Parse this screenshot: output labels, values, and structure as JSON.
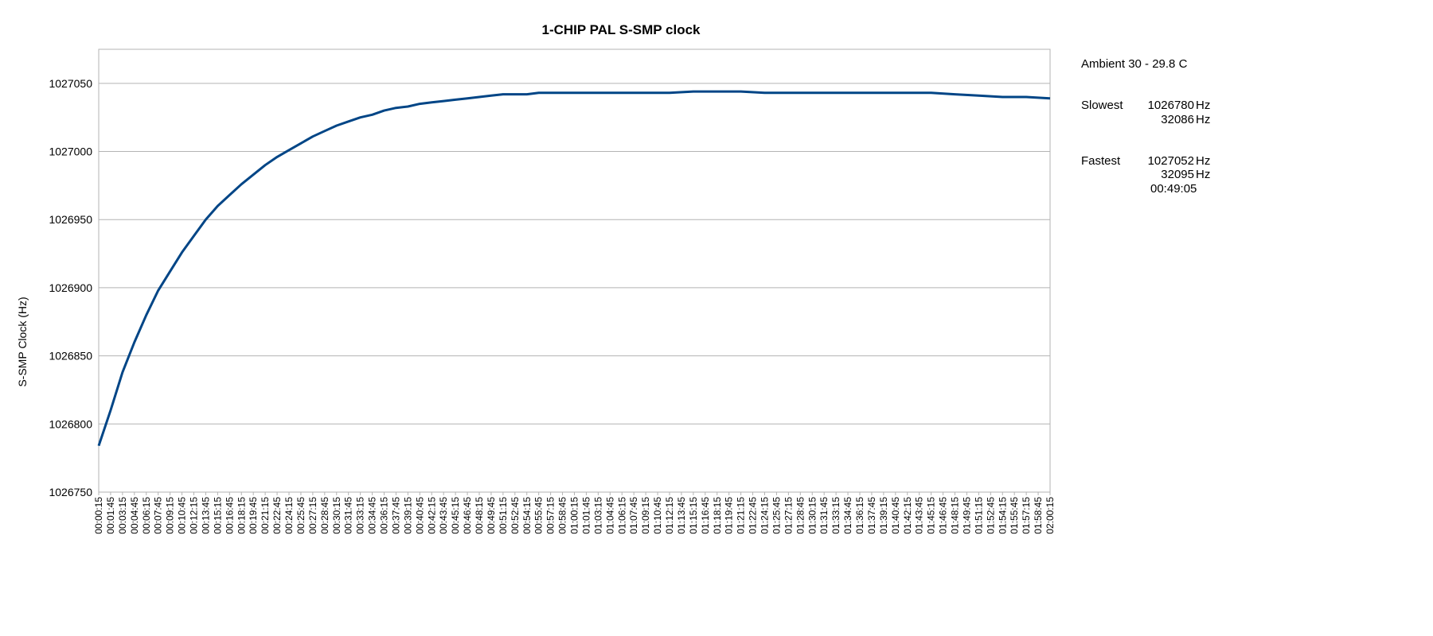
{
  "chart_data": {
    "type": "line",
    "title": "1-CHIP PAL S-SMP clock",
    "xlabel": "",
    "ylabel": "S-SMP Clock (Hz)",
    "ylim": [
      1026750,
      1027075
    ],
    "yticks": [
      1026750,
      1026800,
      1026850,
      1026900,
      1026950,
      1027000,
      1027050
    ],
    "grid": true,
    "legend": "none",
    "line_color": "#004586",
    "x_start": "00:00:15",
    "x_end": "02:00:15",
    "x_tick_labels": [
      "00:00:15",
      "00:01:45",
      "00:03:15",
      "00:04:45",
      "00:06:15",
      "00:07:45",
      "00:09:15",
      "00:10:45",
      "00:12:15",
      "00:13:45",
      "00:15:15",
      "00:16:45",
      "00:18:15",
      "00:19:45",
      "00:21:15",
      "00:22:45",
      "00:24:15",
      "00:25:45",
      "00:27:15",
      "00:28:45",
      "00:30:15",
      "00:31:45",
      "00:33:15",
      "00:34:45",
      "00:36:15",
      "00:37:45",
      "00:39:15",
      "00:40:45",
      "00:42:15",
      "00:43:45",
      "00:45:15",
      "00:46:45",
      "00:48:15",
      "00:49:45",
      "00:51:15",
      "00:52:45",
      "00:54:15",
      "00:55:45",
      "00:57:15",
      "00:58:45",
      "01:00:15",
      "01:01:45",
      "01:03:15",
      "01:04:45",
      "01:06:15",
      "01:07:45",
      "01:09:15",
      "01:10:45",
      "01:12:15",
      "01:13:45",
      "01:15:15",
      "01:16:45",
      "01:18:15",
      "01:19:45",
      "01:21:15",
      "01:22:45",
      "01:24:15",
      "01:25:45",
      "01:27:15",
      "01:28:45",
      "01:30:15",
      "01:31:45",
      "01:33:15",
      "01:34:45",
      "01:36:15",
      "01:37:45",
      "01:39:15",
      "01:40:45",
      "01:42:15",
      "01:43:45",
      "01:45:15",
      "01:46:45",
      "01:48:15",
      "01:49:45",
      "01:51:15",
      "01:52:45",
      "01:54:15",
      "01:55:45",
      "01:57:15",
      "01:58:45",
      "02:00:15"
    ],
    "series": [
      {
        "x": [
          "00:00:15",
          "00:01:45",
          "00:03:15",
          "00:04:45",
          "00:06:15",
          "00:07:45",
          "00:09:15",
          "00:10:45",
          "00:12:15",
          "00:13:45",
          "00:15:15",
          "00:16:45",
          "00:18:15",
          "00:19:45",
          "00:21:15",
          "00:22:45",
          "00:24:15",
          "00:25:45",
          "00:27:15",
          "00:28:45",
          "00:30:15",
          "00:31:45",
          "00:33:15",
          "00:34:45",
          "00:36:15",
          "00:37:45",
          "00:39:15",
          "00:40:45",
          "00:42:15",
          "00:43:45",
          "00:45:15",
          "00:46:45",
          "00:48:15",
          "00:49:45",
          "00:51:15",
          "00:52:45",
          "00:54:15",
          "00:55:45",
          "00:57:15",
          "00:58:45",
          "01:00:15",
          "01:03:15",
          "01:06:15",
          "01:09:15",
          "01:12:15",
          "01:15:15",
          "01:18:15",
          "01:21:15",
          "01:24:15",
          "01:27:15",
          "01:30:15",
          "01:33:15",
          "01:36:15",
          "01:39:15",
          "01:42:15",
          "01:45:15",
          "01:48:15",
          "01:51:15",
          "01:54:15",
          "01:57:15",
          "02:00:15"
        ],
        "values": [
          1026784,
          1026810,
          1026838,
          1026860,
          1026880,
          1026898,
          1026912,
          1026926,
          1026938,
          1026950,
          1026960,
          1026968,
          1026976,
          1026983,
          1026990,
          1026996,
          1027001,
          1027006,
          1027011,
          1027015,
          1027019,
          1027022,
          1027025,
          1027027,
          1027030,
          1027032,
          1027033,
          1027035,
          1027036,
          1027037,
          1027038,
          1027039,
          1027040,
          1027041,
          1027042,
          1027042,
          1027042,
          1027043,
          1027043,
          1027043,
          1027043,
          1027043,
          1027043,
          1027043,
          1027043,
          1027044,
          1027044,
          1027044,
          1027043,
          1027043,
          1027043,
          1027043,
          1027043,
          1027043,
          1027043,
          1027043,
          1027042,
          1027041,
          1027040,
          1027040,
          1027039
        ]
      }
    ]
  },
  "side_panel": {
    "ambient": "Ambient 30 - 29.8 C",
    "slowest_label": "Slowest",
    "slowest_hz": "1026780",
    "slowest_hz_unit": "Hz",
    "slowest_sub": "32086",
    "slowest_sub_unit": "Hz",
    "fastest_label": "Fastest",
    "fastest_hz": "1027052",
    "fastest_hz_unit": "Hz",
    "fastest_sub": "32095",
    "fastest_sub_unit": "Hz",
    "fastest_time": "00:49:05"
  }
}
